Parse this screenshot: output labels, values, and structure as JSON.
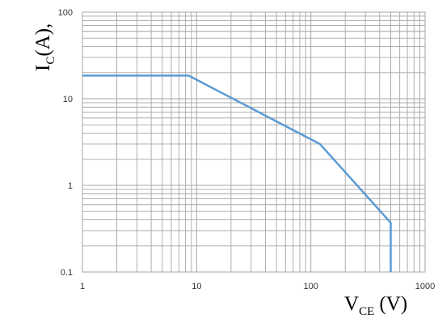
{
  "chart_data": {
    "type": "line",
    "x_scale": "log",
    "y_scale": "log",
    "xlim": [
      1,
      1000
    ],
    "ylim": [
      0.1,
      100
    ],
    "x_ticks": [
      "1",
      "10",
      "100",
      "1000"
    ],
    "y_ticks": [
      "0.1",
      "1",
      "10",
      "100"
    ],
    "ylabel": {
      "main": "I",
      "sub": "C",
      "rest": "(A),"
    },
    "xlabel": {
      "main": "V",
      "sub": "CE",
      "rest": " (V)"
    },
    "grid": true,
    "legend": "none",
    "series_color": "#5b9bd5",
    "grid_color": "#a6a6a6",
    "series": [
      {
        "x": [
          1,
          8.5,
          120,
          500,
          500
        ],
        "y": [
          18.5,
          18.5,
          3.0,
          0.37,
          0.1
        ]
      }
    ]
  }
}
